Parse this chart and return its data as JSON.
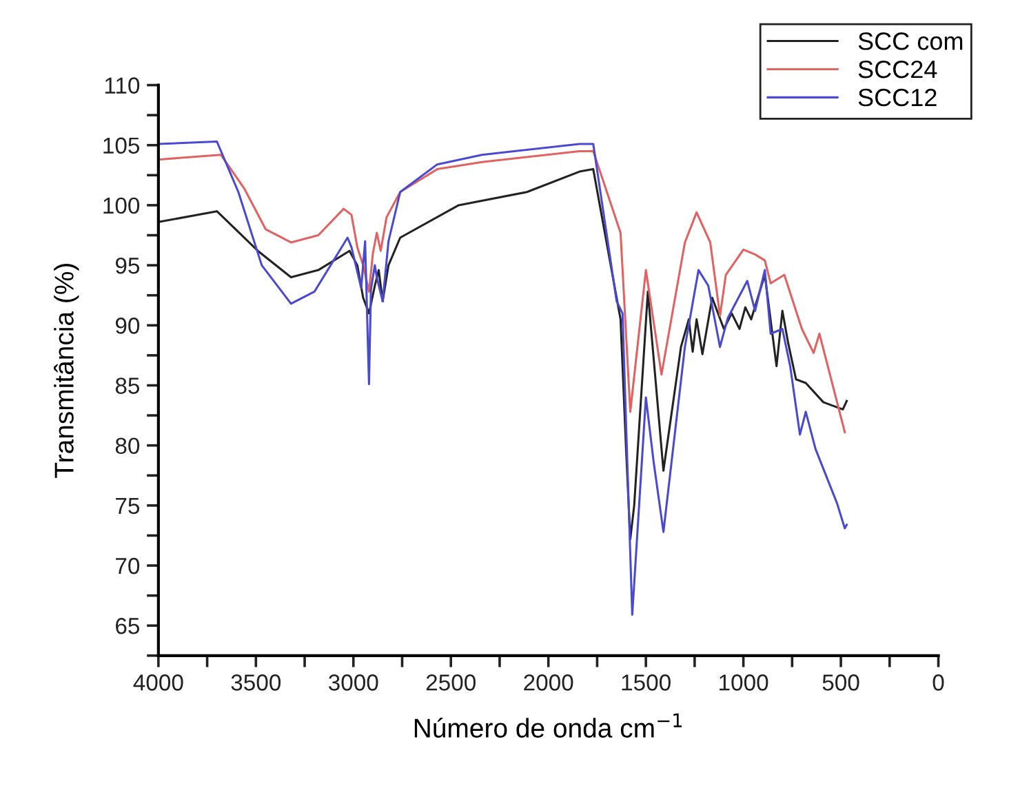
{
  "chart_data": {
    "type": "line",
    "xlabel": "Número de onda cm$^{−1}$",
    "ylabel": "Transmitância (%)",
    "xlim": [
      4000,
      0
    ],
    "ylim": [
      62.5,
      110
    ],
    "xticks": [
      4000,
      {
        "value": 3750,
        "label": null
      },
      3500,
      {
        "value": 3250,
        "label": null
      },
      3000,
      {
        "value": 2750,
        "label": null
      },
      2500,
      {
        "value": 2250,
        "label": null
      },
      2000,
      {
        "value": 1750,
        "label": null
      },
      1500,
      {
        "value": 1250,
        "label": null
      },
      1000,
      {
        "value": 750,
        "label": null
      },
      500,
      {
        "value": 250,
        "label": null
      },
      0
    ],
    "yticks": [
      {
        "value": 62.5,
        "label": null
      },
      65,
      {
        "value": 67.5,
        "label": null
      },
      70,
      {
        "value": 72.5,
        "label": null
      },
      75,
      {
        "value": 77.5,
        "label": null
      },
      80,
      {
        "value": 82.5,
        "label": null
      },
      85,
      {
        "value": 87.5,
        "label": null
      },
      90,
      {
        "value": 92.5,
        "label": null
      },
      95,
      {
        "value": 97.5,
        "label": null
      },
      100,
      {
        "value": 102.5,
        "label": null
      },
      105,
      {
        "value": 107.5,
        "label": null
      },
      110
    ],
    "legend": "top right",
    "grid": false,
    "line_style": "solid",
    "marker": "none",
    "series": [
      {
        "name": "SCC com",
        "color": "#222222",
        "x": [
          4000,
          3700,
          3490,
          3320,
          3180,
          3020,
          2980,
          2950,
          2920,
          2890,
          2870,
          2850,
          2820,
          2760,
          2460,
          2110,
          1840,
          1770,
          1630,
          1600,
          1580,
          1560,
          1490,
          1410,
          1320,
          1280,
          1260,
          1240,
          1210,
          1160,
          1100,
          1060,
          1020,
          990,
          960,
          890,
          830,
          800,
          770,
          730,
          680,
          590,
          490,
          470
        ],
        "values": [
          98.6,
          99.5,
          96.2,
          94.0,
          94.6,
          96.2,
          95.0,
          92.3,
          91.0,
          93.3,
          94.6,
          92.0,
          95.0,
          97.3,
          100.0,
          101.1,
          102.8,
          103.0,
          90.5,
          79.1,
          72.2,
          75.0,
          92.8,
          77.9,
          88.2,
          90.5,
          87.8,
          90.5,
          87.6,
          92.3,
          89.7,
          91.0,
          89.7,
          91.5,
          90.5,
          94.2,
          86.6,
          91.2,
          88.5,
          85.5,
          85.2,
          83.6,
          83.0,
          83.7
        ]
      },
      {
        "name": "SCC24",
        "color": "#e06262",
        "x": [
          4000,
          3680,
          3560,
          3450,
          3320,
          3180,
          3050,
          3010,
          2980,
          2950,
          2920,
          2900,
          2880,
          2860,
          2830,
          2760,
          2570,
          2340,
          1840,
          1770,
          1630,
          1580,
          1500,
          1420,
          1300,
          1240,
          1170,
          1120,
          1090,
          1000,
          940,
          890,
          860,
          790,
          700,
          640,
          610,
          480
        ],
        "values": [
          103.8,
          104.2,
          101.4,
          98.0,
          96.9,
          97.5,
          99.7,
          99.2,
          96.5,
          95.0,
          92.8,
          96.0,
          97.7,
          96.2,
          99.0,
          101.1,
          103.0,
          103.6,
          104.5,
          104.5,
          97.7,
          82.8,
          94.6,
          85.9,
          96.9,
          99.4,
          96.9,
          90.8,
          94.2,
          96.3,
          95.9,
          95.4,
          93.5,
          94.2,
          89.7,
          87.7,
          89.3,
          81.1
        ]
      },
      {
        "name": "SCC12",
        "color": "#4a4ad0",
        "x": [
          4000,
          3700,
          3590,
          3470,
          3320,
          3200,
          3030,
          3010,
          2960,
          2940,
          2920,
          2910,
          2890,
          2880,
          2850,
          2820,
          2760,
          2570,
          2340,
          1840,
          1770,
          1650,
          1620,
          1570,
          1500,
          1460,
          1410,
          1300,
          1230,
          1180,
          1120,
          1080,
          980,
          940,
          890,
          860,
          800,
          760,
          710,
          680,
          630,
          520,
          480,
          470
        ],
        "values": [
          105.1,
          105.3,
          101.1,
          95.0,
          91.8,
          92.8,
          97.3,
          96.5,
          93.1,
          97.0,
          85.1,
          93.0,
          95.0,
          94.0,
          92.0,
          97.0,
          101.1,
          103.4,
          104.2,
          105.1,
          105.1,
          92.0,
          91.0,
          65.9,
          84.0,
          78.6,
          72.8,
          88.2,
          94.6,
          93.3,
          88.2,
          90.6,
          93.7,
          91.2,
          94.6,
          89.3,
          89.7,
          86.6,
          80.9,
          82.8,
          79.7,
          75.2,
          73.1,
          73.4
        ]
      }
    ]
  }
}
